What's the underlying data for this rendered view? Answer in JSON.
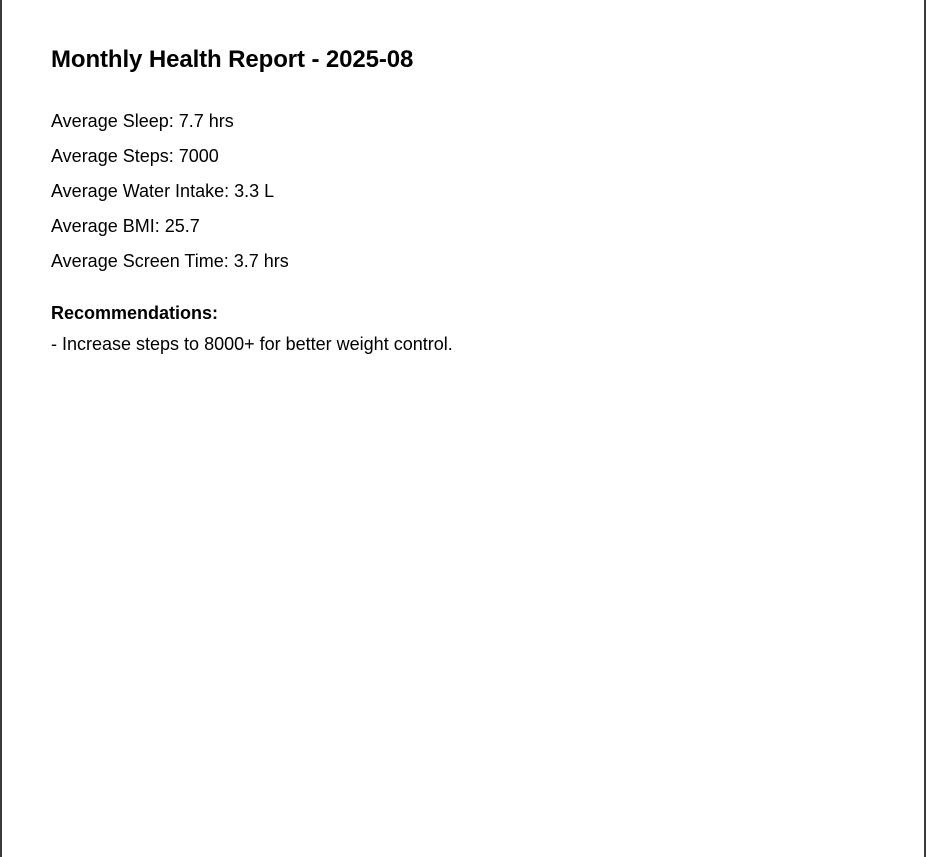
{
  "report": {
    "title": "Monthly Health Report - 2025-08",
    "metrics": [
      "Average Sleep: 7.7 hrs",
      "Average Steps: 7000",
      "Average Water Intake: 3.3 L",
      "Average BMI: 25.7",
      "Average Screen Time: 3.7 hrs"
    ],
    "recommendations_heading": "Recommendations:",
    "recommendations": [
      "- Increase steps to 8000+ for better weight control."
    ]
  }
}
